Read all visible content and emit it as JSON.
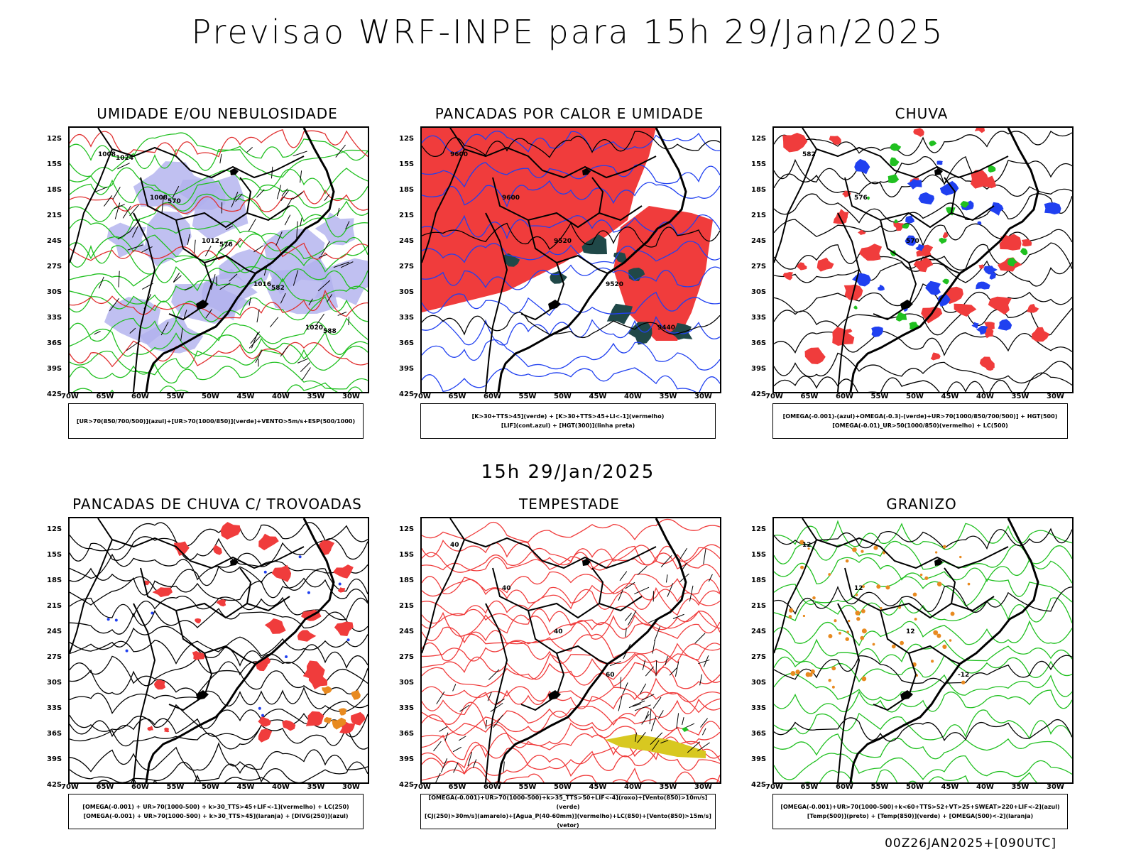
{
  "header": {
    "title": "Previsao WRF-INPE  para 15h 29/Jan/2025"
  },
  "mid_title": "15h 29/Jan/2025",
  "footer": "00Z26JAN2025+[090UTC]",
  "axes": {
    "lat_labels": [
      "12S",
      "15S",
      "18S",
      "21S",
      "24S",
      "27S",
      "30S",
      "33S",
      "36S",
      "39S",
      "42S"
    ],
    "lon_labels": [
      "70W",
      "65W",
      "60W",
      "55W",
      "50W",
      "45W",
      "40W",
      "35W",
      "30W"
    ]
  },
  "panels": [
    {
      "title": "UMIDADE E/OU NEBULOSIDADE",
      "legend": [
        "[UR>70(850/700/500)](azul)+[UR>70(1000/850)](verde)+VENTO>5m/s+ESP(500/1000)"
      ],
      "contour_labels": [
        "1008",
        "1008",
        "1012",
        "1016",
        "1020",
        "1024",
        "570",
        "576",
        "582",
        "588"
      ],
      "colors": {
        "primary": "#b0b0ee",
        "secondary": "#20c020",
        "accent": "#e03030"
      }
    },
    {
      "title": "PANCADAS POR CALOR E UMIDADE",
      "legend": [
        "[K>30+TTS>45](verde) + [K>30+TTS>45+LI<-1](vermelho)",
        "[LIF](cont.azul) + [HGT(300)](linha preta)"
      ],
      "contour_labels": [
        "9600",
        "9600",
        "9520",
        "9520",
        "9440"
      ],
      "colors": {
        "primary": "#f03c3c",
        "secondary": "#204848",
        "accent": "#2040f0"
      }
    },
    {
      "title": "CHUVA",
      "legend": [
        "[OMEGA(-0.001)-(azul)+OMEGA(-0.3)-(verde)+UR>70(1000/850/700/500)] + HGT(500)",
        "[OMEGA(-0.01)_UR>50(1000/850)(vermelho) + LC(500)"
      ],
      "contour_labels": [
        "582",
        "576",
        "570"
      ],
      "colors": {
        "primary": "#f03c3c",
        "secondary": "#2040f0",
        "accent": "#20c020"
      }
    },
    {
      "title": "PANCADAS DE CHUVA C/ TROVOADAS",
      "legend": [
        "[OMEGA(-0.001) + UR>70(1000-500) + k>30_TTS>45+LIF<-1](vermelho) + LC(250)",
        "[OMEGA(-0.001) + UR>70(1000-500) + k>30_TTS>45](laranja) + [DIVG(250)](azul)"
      ],
      "contour_labels": [],
      "colors": {
        "primary": "#f03c3c",
        "secondary": "#e88a20",
        "accent": "#2040f0"
      }
    },
    {
      "title": "TEMPESTADE",
      "legend": [
        "[OMEGA(-0.001)+UR>70(1000-500)+k>35_TTS>50+LIF<-4](roxo)+[Vento(850)>10m/s](verde)",
        "[CJ(250)>30m/s](amarelo)+[Agua_P(40-60mm)](vermelho)+LC(850)+[Vento(850)>15m/s](vetor)"
      ],
      "contour_labels": [
        "40",
        "40",
        "40",
        "60"
      ],
      "colors": {
        "primary": "#f03c3c",
        "secondary": "#d8c820",
        "accent": "#20c020"
      }
    },
    {
      "title": "GRANIZO",
      "legend": [
        "[OMEGA(-0.001)+UR>70(1000-500)+k<60+TTS>52+VT>25+SWEAT>220+LIF<-2](azul)",
        "[Temp(500)](preto) + [Temp(850)](verde) + [OMEGA(500)<-2](laranja)"
      ],
      "contour_labels": [
        "12",
        "12",
        "12",
        "-12"
      ],
      "colors": {
        "primary": "#20c020",
        "secondary": "#e88a20",
        "accent": "#000000"
      }
    }
  ]
}
